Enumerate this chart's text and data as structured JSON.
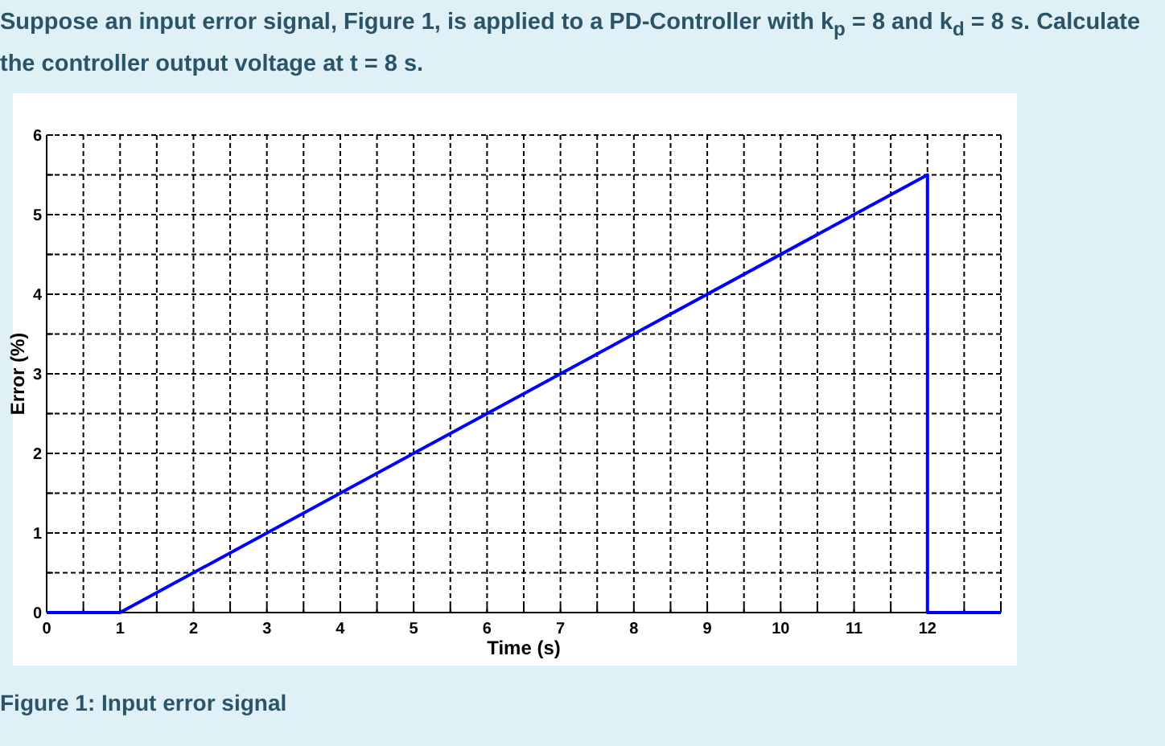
{
  "chart_data": {
    "type": "line",
    "title": "Suppose an input error signal, Figure 1, is applied to a PD-Controller with k$_{p}$ = 8 and k$_{d}$ = 8 s. Calculate the controller output voltage at t = 8 s.",
    "xlabel": "Time (s)",
    "ylabel": "Error (%)",
    "annotations": [
      "Figure 1: Input error signal"
    ],
    "x": [
      0,
      1,
      12,
      12,
      13
    ],
    "series": [
      {
        "color": "#0000ff",
        "values": [
          0,
          0,
          5.5,
          0,
          0
        ]
      }
    ],
    "xlim": [
      0,
      13
    ],
    "ylim": [
      0,
      6
    ],
    "xticks": [
      0,
      {
        "value": 0.5,
        "label": null
      },
      1,
      {
        "value": 1.5,
        "label": null
      },
      2,
      {
        "value": 2.5,
        "label": null
      },
      3,
      {
        "value": 3.5,
        "label": null
      },
      4,
      {
        "value": 4.5,
        "label": null
      },
      5,
      {
        "value": 5.5,
        "label": null
      },
      6,
      {
        "value": 6.5,
        "label": null
      },
      7,
      {
        "value": 7.5,
        "label": null
      },
      8,
      {
        "value": 8.5,
        "label": null
      },
      9,
      {
        "value": 9.5,
        "label": null
      },
      10,
      {
        "value": 10.5,
        "label": null
      },
      11,
      {
        "value": 11.5,
        "label": null
      },
      12,
      {
        "value": 12.5,
        "label": null
      },
      {
        "value": 13,
        "label": null
      }
    ],
    "yticks": [
      0,
      {
        "value": 0.5,
        "label": null
      },
      1,
      {
        "value": 1.5,
        "label": null
      },
      2,
      {
        "value": 2.5,
        "label": null
      },
      3,
      {
        "value": 3.5,
        "label": null
      },
      4,
      {
        "value": 4.5,
        "label": null
      },
      5,
      {
        "value": 5.5,
        "label": null
      },
      6
    ],
    "grid": true,
    "line_style": "solid"
  }
}
